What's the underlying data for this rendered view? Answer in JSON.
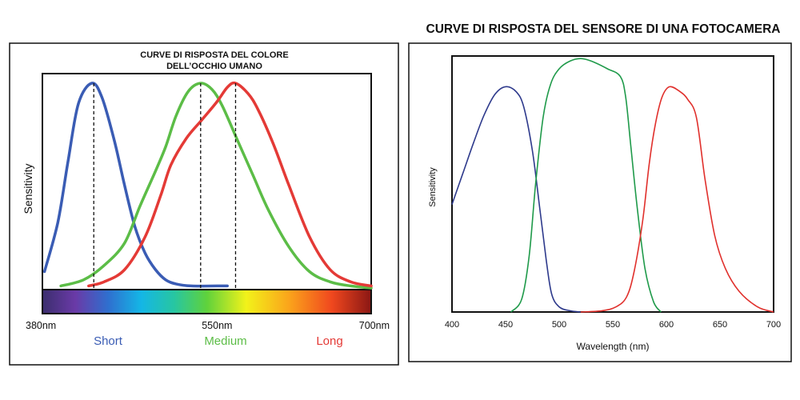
{
  "chart_data": [
    {
      "type": "line",
      "title": "CURVE DI RISPOSTA DEL COLORE\nDELL’OCCHIO UMANO",
      "ylabel": "Sensitivity",
      "xlabel": "",
      "xlim": [
        380,
        700
      ],
      "ylim": [
        0,
        1
      ],
      "tick_labels": [
        "380nm",
        "550nm",
        "700nm"
      ],
      "tick_values": [
        380,
        550,
        700
      ],
      "band_labels": [
        {
          "text": "Short",
          "color": "#3a5cb4"
        },
        {
          "text": "Medium",
          "color": "#5cbd47"
        },
        {
          "text": "Long",
          "color": "#e43a36"
        }
      ],
      "grid": false,
      "spectrum_bar": true,
      "series": [
        {
          "name": "Short",
          "color": "#3a5cb4",
          "peak": 430,
          "points": [
            [
              382,
              0.08
            ],
            [
              395,
              0.32
            ],
            [
              405,
              0.62
            ],
            [
              415,
              0.9
            ],
            [
              428,
              1.0
            ],
            [
              438,
              0.93
            ],
            [
              450,
              0.72
            ],
            [
              460,
              0.5
            ],
            [
              470,
              0.3
            ],
            [
              480,
              0.17
            ],
            [
              490,
              0.09
            ],
            [
              500,
              0.04
            ],
            [
              510,
              0.02
            ],
            [
              525,
              0.01
            ],
            [
              550,
              0.01
            ],
            [
              560,
              0.01
            ]
          ]
        },
        {
          "name": "Medium",
          "color": "#5cbd47",
          "peak": 534,
          "points": [
            [
              398,
              0.01
            ],
            [
              420,
              0.04
            ],
            [
              440,
              0.11
            ],
            [
              460,
              0.22
            ],
            [
              475,
              0.4
            ],
            [
              490,
              0.57
            ],
            [
              500,
              0.69
            ],
            [
              510,
              0.84
            ],
            [
              522,
              0.96
            ],
            [
              534,
              1.0
            ],
            [
              545,
              0.97
            ],
            [
              555,
              0.89
            ],
            [
              570,
              0.72
            ],
            [
              585,
              0.55
            ],
            [
              600,
              0.38
            ],
            [
              620,
              0.2
            ],
            [
              640,
              0.08
            ],
            [
              660,
              0.03
            ],
            [
              680,
              0.01
            ],
            [
              700,
              0.0
            ]
          ]
        },
        {
          "name": "Long",
          "color": "#e43a36",
          "peak": 568,
          "points": [
            [
              425,
              0.01
            ],
            [
              440,
              0.03
            ],
            [
              460,
              0.09
            ],
            [
              480,
              0.25
            ],
            [
              495,
              0.45
            ],
            [
              505,
              0.6
            ],
            [
              520,
              0.73
            ],
            [
              535,
              0.82
            ],
            [
              550,
              0.91
            ],
            [
              560,
              0.98
            ],
            [
              568,
              1.0
            ],
            [
              580,
              0.95
            ],
            [
              590,
              0.87
            ],
            [
              605,
              0.7
            ],
            [
              620,
              0.5
            ],
            [
              640,
              0.25
            ],
            [
              660,
              0.09
            ],
            [
              680,
              0.03
            ],
            [
              700,
              0.01
            ]
          ]
        }
      ]
    },
    {
      "type": "line",
      "title": "CURVE DI RISPOSTA DEL SENSORE DI UNA FOTOCAMERA",
      "ylabel": "Sensitivity",
      "xlabel": "Wavelength (nm)",
      "xlim": [
        400,
        700
      ],
      "ylim": [
        0,
        1
      ],
      "x_ticks": [
        "400",
        "450",
        "500",
        "550",
        "600",
        "650",
        "700"
      ],
      "grid": false,
      "series": [
        {
          "name": "Blue",
          "color": "#2e3a8c",
          "points": [
            [
              400,
              0.42
            ],
            [
              410,
              0.54
            ],
            [
              420,
              0.66
            ],
            [
              430,
              0.77
            ],
            [
              440,
              0.85
            ],
            [
              450,
              0.88
            ],
            [
              460,
              0.86
            ],
            [
              467,
              0.8
            ],
            [
              475,
              0.63
            ],
            [
              482,
              0.4
            ],
            [
              488,
              0.2
            ],
            [
              493,
              0.07
            ],
            [
              500,
              0.02
            ],
            [
              510,
              0.005
            ],
            [
              520,
              0.0
            ]
          ]
        },
        {
          "name": "Green",
          "color": "#1f9a4a",
          "points": [
            [
              455,
              0.0
            ],
            [
              465,
              0.05
            ],
            [
              472,
              0.22
            ],
            [
              478,
              0.5
            ],
            [
              485,
              0.76
            ],
            [
              492,
              0.89
            ],
            [
              500,
              0.95
            ],
            [
              510,
              0.98
            ],
            [
              520,
              0.99
            ],
            [
              530,
              0.98
            ],
            [
              545,
              0.95
            ],
            [
              557,
              0.92
            ],
            [
              562,
              0.84
            ],
            [
              567,
              0.64
            ],
            [
              573,
              0.4
            ],
            [
              580,
              0.17
            ],
            [
              588,
              0.04
            ],
            [
              595,
              0.0
            ]
          ]
        },
        {
          "name": "Red",
          "color": "#e0302c",
          "points": [
            [
              520,
              0.0
            ],
            [
              540,
              0.005
            ],
            [
              553,
              0.02
            ],
            [
              563,
              0.06
            ],
            [
              570,
              0.16
            ],
            [
              578,
              0.36
            ],
            [
              584,
              0.58
            ],
            [
              590,
              0.74
            ],
            [
              596,
              0.84
            ],
            [
              603,
              0.88
            ],
            [
              613,
              0.86
            ],
            [
              620,
              0.83
            ],
            [
              628,
              0.76
            ],
            [
              636,
              0.52
            ],
            [
              645,
              0.3
            ],
            [
              655,
              0.17
            ],
            [
              668,
              0.08
            ],
            [
              685,
              0.02
            ],
            [
              700,
              0.0
            ]
          ]
        }
      ]
    }
  ]
}
